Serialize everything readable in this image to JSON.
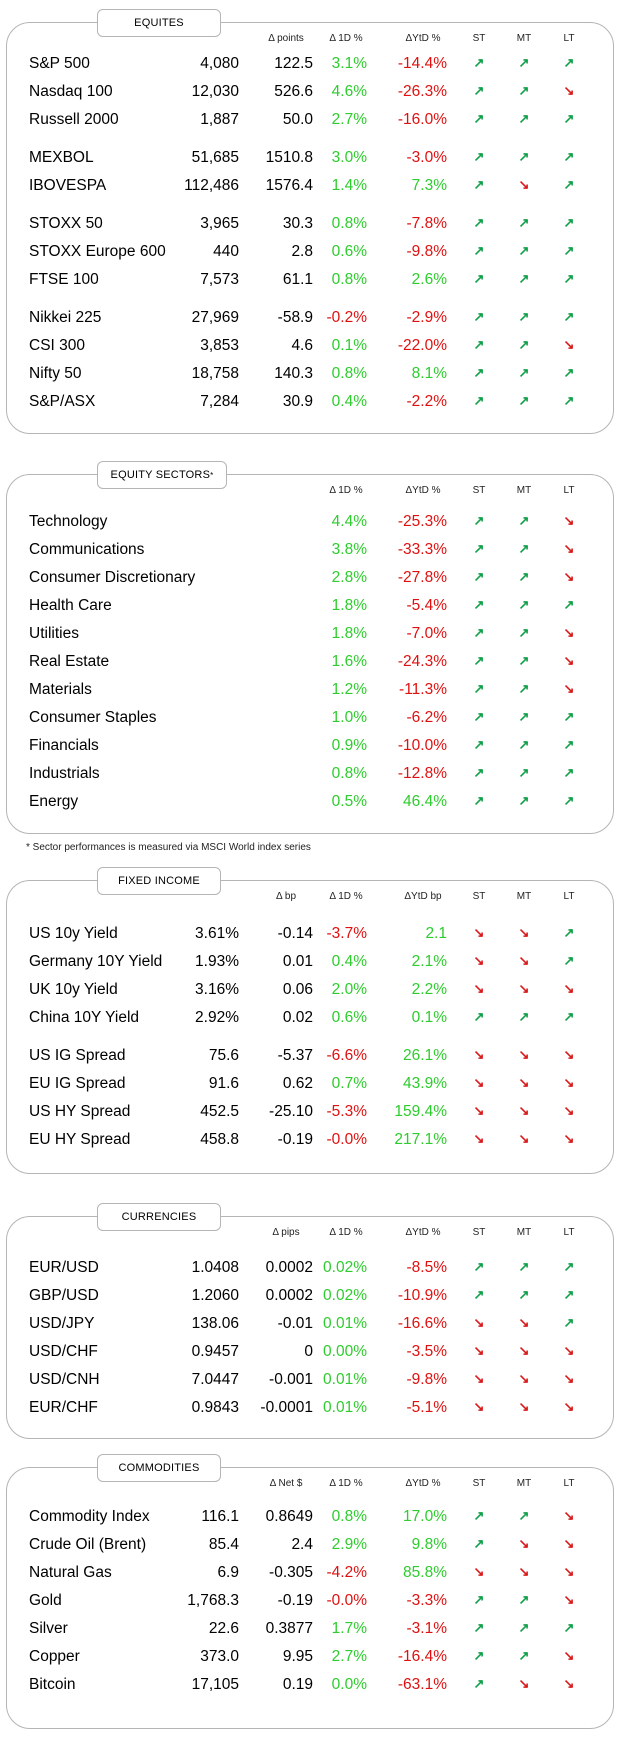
{
  "note": "* Sector performances is measured via MSCI World index series",
  "panels": [
    {
      "title": "EQUITES",
      "sup": "",
      "hdr": [
        "Δ points",
        "Δ 1D %",
        "ΔYtD %",
        "ST",
        "MT",
        "LT"
      ],
      "groups": [
        [
          [
            "S&P 500",
            "4,080",
            "122.5",
            "3.1%",
            "-14.4%",
            "u",
            "u",
            "u"
          ],
          [
            "Nasdaq 100",
            "12,030",
            "526.6",
            "4.6%",
            "-26.3%",
            "u",
            "u",
            "d"
          ],
          [
            "Russell 2000",
            "1,887",
            "50.0",
            "2.7%",
            "-16.0%",
            "u",
            "u",
            "u"
          ]
        ],
        [
          [
            "MEXBOL",
            "51,685",
            "1510.8",
            "3.0%",
            "-3.0%",
            "u",
            "u",
            "u"
          ],
          [
            "IBOVESPA",
            "112,486",
            "1576.4",
            "1.4%",
            "7.3%",
            "u",
            "d",
            "u"
          ]
        ],
        [
          [
            "STOXX 50",
            "3,965",
            "30.3",
            "0.8%",
            "-7.8%",
            "u",
            "u",
            "u"
          ],
          [
            "STOXX Europe 600",
            "440",
            "2.8",
            "0.6%",
            "-9.8%",
            "u",
            "u",
            "u"
          ],
          [
            "FTSE 100",
            "7,573",
            "61.1",
            "0.8%",
            "2.6%",
            "u",
            "u",
            "u"
          ]
        ],
        [
          [
            "Nikkei 225",
            "27,969",
            "-58.9",
            "-0.2%",
            "-2.9%",
            "u",
            "u",
            "u"
          ],
          [
            "CSI 300",
            "3,853",
            "4.6",
            "0.1%",
            "-22.0%",
            "u",
            "u",
            "d"
          ],
          [
            "Nifty  50",
            "18,758",
            "140.3",
            "0.8%",
            "8.1%",
            "u",
            "u",
            "u"
          ],
          [
            "S&P/ASX",
            "7,284",
            "30.9",
            "0.4%",
            "-2.2%",
            "u",
            "u",
            "u"
          ]
        ]
      ]
    },
    {
      "title": "EQUITY SECTORS",
      "sup": "*",
      "hdr": [
        "",
        "Δ 1D %",
        "ΔYtD %",
        "ST",
        "MT",
        "LT"
      ],
      "groups": [
        [
          [
            "Technology",
            "",
            "",
            "4.4%",
            "-25.3%",
            "u",
            "u",
            "d"
          ],
          [
            "Communications",
            "",
            "",
            "3.8%",
            "-33.3%",
            "u",
            "u",
            "d"
          ],
          [
            "Consumer Discretionary",
            "",
            "",
            "2.8%",
            "-27.8%",
            "u",
            "u",
            "d"
          ],
          [
            "Health Care",
            "",
            "",
            "1.8%",
            "-5.4%",
            "u",
            "u",
            "u"
          ],
          [
            "Utilities",
            "",
            "",
            "1.8%",
            "-7.0%",
            "u",
            "u",
            "d"
          ],
          [
            "Real Estate",
            "",
            "",
            "1.6%",
            "-24.3%",
            "u",
            "u",
            "d"
          ],
          [
            "Materials",
            "",
            "",
            "1.2%",
            "-11.3%",
            "u",
            "u",
            "d"
          ],
          [
            "Consumer Staples",
            "",
            "",
            "1.0%",
            "-6.2%",
            "u",
            "u",
            "u"
          ],
          [
            "Financials",
            "",
            "",
            "0.9%",
            "-10.0%",
            "u",
            "u",
            "u"
          ],
          [
            "Industrials",
            "",
            "",
            "0.8%",
            "-12.8%",
            "u",
            "u",
            "u"
          ],
          [
            "Energy",
            "",
            "",
            "0.5%",
            "46.4%",
            "u",
            "u",
            "u"
          ]
        ]
      ]
    },
    {
      "title": "FIXED INCOME",
      "sup": "",
      "hdr": [
        "Δ bp",
        "Δ 1D %",
        "ΔYtD bp",
        "ST",
        "MT",
        "LT"
      ],
      "groups": [
        [
          [
            "US 10y Yield",
            "3.61%",
            "-0.14",
            "-3.7%",
            "2.1",
            "d",
            "d",
            "u"
          ],
          [
            "Germany 10Y Yield",
            "1.93%",
            "0.01",
            "0.4%",
            "2.1%",
            "d",
            "d",
            "u"
          ],
          [
            "UK 10y Yield",
            "3.16%",
            "0.06",
            "2.0%",
            "2.2%",
            "d",
            "d",
            "d"
          ],
          [
            "China 10Y Yield",
            "2.92%",
            "0.02",
            "0.6%",
            "0.1%",
            "u",
            "u",
            "u"
          ]
        ],
        [
          [
            "US IG Spread",
            "75.6",
            "-5.37",
            "-6.6%",
            "26.1%",
            "d",
            "d",
            "d"
          ],
          [
            "EU IG Spread",
            "91.6",
            "0.62",
            "0.7%",
            "43.9%",
            "d",
            "d",
            "d"
          ],
          [
            "US HY Spread",
            "452.5",
            "-25.10",
            "-5.3%",
            "159.4%",
            "d",
            "d",
            "d"
          ],
          [
            "EU HY Spread",
            "458.8",
            "-0.19",
            "-0.0%",
            "217.1%",
            "d",
            "d",
            "d"
          ]
        ]
      ]
    },
    {
      "title": "CURRENCIES",
      "sup": "",
      "hdr": [
        "Δ pips",
        "Δ 1D %",
        "ΔYtD %",
        "ST",
        "MT",
        "LT"
      ],
      "groups": [
        [
          [
            "EUR/USD",
            "1.0408",
            "0.0002",
            "0.02%",
            "-8.5%",
            "u",
            "u",
            "u"
          ],
          [
            "GBP/USD",
            "1.2060",
            "0.0002",
            "0.02%",
            "-10.9%",
            "u",
            "u",
            "u"
          ],
          [
            "USD/JPY",
            "138.06",
            "-0.01",
            "0.01%",
            "-16.6%",
            "d",
            "d",
            "u"
          ],
          [
            "USD/CHF",
            "0.9457",
            "0",
            "0.00%",
            "-3.5%",
            "d",
            "d",
            "d"
          ],
          [
            "USD/CNH",
            "7.0447",
            "-0.001",
            "0.01%",
            "-9.8%",
            "d",
            "d",
            "d"
          ],
          [
            "EUR/CHF",
            "0.9843",
            "-0.0001",
            "0.01%",
            "-5.1%",
            "d",
            "d",
            "d"
          ]
        ]
      ]
    },
    {
      "title": "COMMODITIES",
      "sup": "",
      "hdr": [
        "Δ Net $",
        "Δ 1D %",
        "ΔYtD %",
        "ST",
        "MT",
        "LT"
      ],
      "groups": [
        [
          [
            "Commodity Index",
            "116.1",
            "0.8649",
            "0.8%",
            "17.0%",
            "u",
            "u",
            "d"
          ],
          [
            "Crude Oil (Brent)",
            "85.4",
            "2.4",
            "2.9%",
            "9.8%",
            "u",
            "d",
            "d"
          ],
          [
            "Natural Gas",
            "6.9",
            "-0.305",
            "-4.2%",
            "85.8%",
            "d",
            "d",
            "d"
          ],
          [
            "Gold",
            "1,768.3",
            "-0.19",
            "-0.0%",
            "-3.3%",
            "u",
            "u",
            "d"
          ],
          [
            "Silver",
            "22.6",
            "0.3877",
            "1.7%",
            "-3.1%",
            "u",
            "u",
            "u"
          ],
          [
            "Copper",
            "373.0",
            "9.95",
            "2.7%",
            "-16.4%",
            "u",
            "u",
            "d"
          ],
          [
            "Bitcoin",
            "17,105",
            "0.19",
            "0.0%",
            "-63.1%",
            "u",
            "d",
            "d"
          ]
        ]
      ]
    }
  ]
}
